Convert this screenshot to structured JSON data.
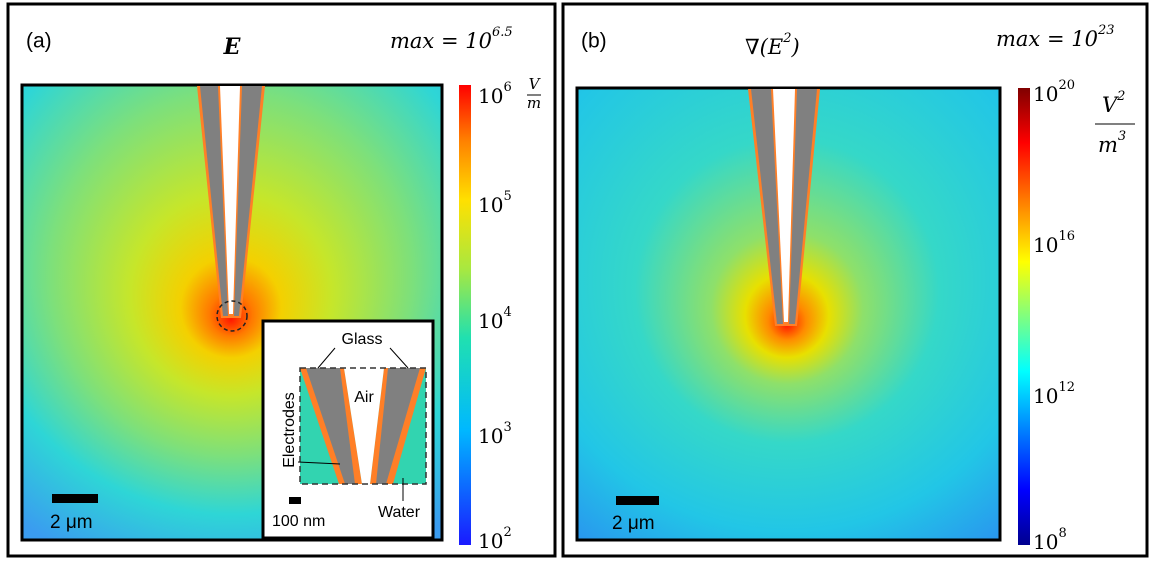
{
  "panels": [
    {
      "label": "(a)",
      "title": "E",
      "max": {
        "text": "max = 10",
        "exponent": "6.5"
      },
      "colorbar": {
        "ticks": [
          {
            "base": "10",
            "exponent": "6"
          },
          {
            "base": "10",
            "exponent": "5"
          },
          {
            "base": "10",
            "exponent": "4"
          },
          {
            "base": "10",
            "exponent": "3"
          },
          {
            "base": "10",
            "exponent": "2"
          }
        ],
        "unit": {
          "numerator": "V",
          "denominator": "m"
        }
      },
      "scale_bar": "2 μm",
      "inset": {
        "glass": "Glass",
        "air": "Air",
        "electrodes": "Electrodes",
        "water": "Water",
        "scale_bar": "100 nm"
      }
    },
    {
      "label": "(b)",
      "title": {
        "text": "∇(E",
        "exponent": "2",
        "end": ")"
      },
      "max": {
        "text": "max = 10",
        "exponent": "23"
      },
      "colorbar": {
        "ticks": [
          {
            "base": "10",
            "exponent": "20"
          },
          {
            "base": "10",
            "exponent": "16"
          },
          {
            "base": "10",
            "exponent": "12"
          },
          {
            "base": "10",
            "exponent": "8"
          }
        ],
        "unit": {
          "numerator": "V",
          "numerator_exponent": "2",
          "denominator": "m",
          "denominator_exponent": "3"
        }
      },
      "scale_bar": "2 μm"
    }
  ]
}
